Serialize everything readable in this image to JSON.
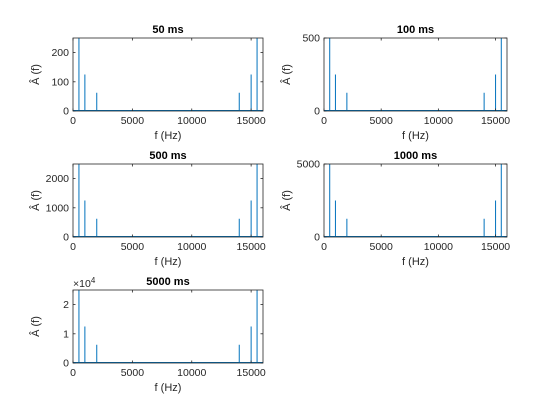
{
  "chart_data": [
    {
      "type": "stem",
      "title": "50 ms",
      "xlabel": "f (Hz)",
      "ylabel": "Â (f)",
      "xlim": [
        0,
        16000
      ],
      "ylim": [
        0,
        250
      ],
      "xticks": [
        0,
        5000,
        10000,
        15000
      ],
      "xtick_labels": [
        "0",
        "5000",
        "10000",
        "15000"
      ],
      "yticks": [
        0,
        100,
        200
      ],
      "ytick_labels": [
        "0",
        "100",
        "200"
      ],
      "series": [
        {
          "x": [
            500,
            1000,
            2000,
            14000,
            15000,
            15500
          ],
          "y": [
            250,
            125,
            62.5,
            62.5,
            125,
            250
          ]
        }
      ]
    },
    {
      "type": "stem",
      "title": "100 ms",
      "xlabel": "f (Hz)",
      "ylabel": "Â (f)",
      "xlim": [
        0,
        16000
      ],
      "ylim": [
        0,
        500
      ],
      "xticks": [
        0,
        5000,
        10000,
        15000
      ],
      "xtick_labels": [
        "0",
        "5000",
        "10000",
        "15000"
      ],
      "yticks": [
        0,
        500
      ],
      "ytick_labels": [
        "0",
        "500"
      ],
      "series": [
        {
          "x": [
            500,
            1000,
            2000,
            14000,
            15000,
            15500
          ],
          "y": [
            500,
            250,
            125,
            125,
            250,
            500
          ]
        }
      ]
    },
    {
      "type": "stem",
      "title": "500 ms",
      "xlabel": "f (Hz)",
      "ylabel": "Â (f)",
      "xlim": [
        0,
        16000
      ],
      "ylim": [
        0,
        2500
      ],
      "xticks": [
        0,
        5000,
        10000,
        15000
      ],
      "xtick_labels": [
        "0",
        "5000",
        "10000",
        "15000"
      ],
      "yticks": [
        0,
        1000,
        2000
      ],
      "ytick_labels": [
        "0",
        "1000",
        "2000"
      ],
      "series": [
        {
          "x": [
            500,
            1000,
            2000,
            14000,
            15000,
            15500
          ],
          "y": [
            2500,
            1250,
            625,
            625,
            1250,
            2500
          ]
        }
      ]
    },
    {
      "type": "stem",
      "title": "1000 ms",
      "xlabel": "f (Hz)",
      "ylabel": "Â (f)",
      "xlim": [
        0,
        16000
      ],
      "ylim": [
        0,
        5000
      ],
      "xticks": [
        0,
        5000,
        10000,
        15000
      ],
      "xtick_labels": [
        "0",
        "5000",
        "10000",
        "15000"
      ],
      "yticks": [
        0,
        5000
      ],
      "ytick_labels": [
        "0",
        "5000"
      ],
      "series": [
        {
          "x": [
            500,
            1000,
            2000,
            14000,
            15000,
            15500
          ],
          "y": [
            5000,
            2500,
            1250,
            1250,
            2500,
            5000
          ]
        }
      ]
    },
    {
      "type": "stem",
      "title": "5000 ms",
      "xlabel": "f (Hz)",
      "ylabel": "Â (f)",
      "xlim": [
        0,
        16000
      ],
      "ylim": [
        0,
        25000
      ],
      "xticks": [
        0,
        5000,
        10000,
        15000
      ],
      "xtick_labels": [
        "0",
        "5000",
        "10000",
        "15000"
      ],
      "yticks": [
        0,
        10000,
        20000
      ],
      "ytick_labels": [
        "0",
        "1",
        "2"
      ],
      "exponent_base": "×10",
      "exponent_power": "4",
      "series": [
        {
          "x": [
            500,
            1000,
            2000,
            14000,
            15000,
            15500
          ],
          "y": [
            25000,
            12500,
            6250,
            6250,
            12500,
            25000
          ]
        }
      ]
    }
  ],
  "colors": {
    "series": "#0072bd",
    "axes": "#262626"
  }
}
